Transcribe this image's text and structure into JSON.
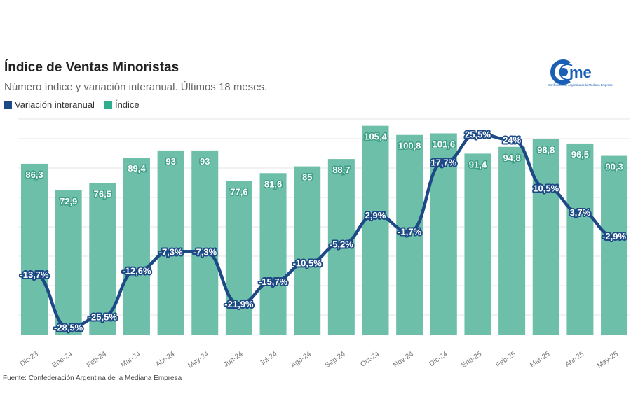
{
  "header": {
    "title": "Índice de Ventas Minoristas",
    "subtitle": "Número índice y variación interanual. Últimos 18 meses.",
    "logo_text": "cAme",
    "logo_caption": "Confederación Argentina de la Mediana Empresa"
  },
  "source": "Fuente: Confederación Argentina de la Mediana Empresa",
  "colors": {
    "bar": "#6dbfa9",
    "line": "#1d4a86",
    "grid": "#e6e6e6"
  },
  "chart_data": {
    "type": "bar+line",
    "categories": [
      "Dic-23",
      "Ene-24",
      "Feb-24",
      "Mar-24",
      "Abr-24",
      "May-24",
      "Jun-24",
      "Jul-24",
      "Ago-24",
      "Sep-24",
      "Oct-24",
      "Nov-24",
      "Dic-24",
      "Ene-25",
      "Feb-25",
      "Mar-25",
      "Abr-25",
      "May-25"
    ],
    "series": [
      {
        "name": "Índice",
        "type": "bar",
        "values": [
          86.3,
          72.9,
          76.5,
          89.4,
          93,
          93,
          77.6,
          81.6,
          85,
          88.7,
          105.4,
          100.8,
          101.6,
          91.4,
          94.8,
          98.8,
          96.5,
          90.3
        ],
        "labels": [
          "86,3",
          "72,9",
          "76,5",
          "89,4",
          "93",
          "93",
          "77,6",
          "81,6",
          "85",
          "88,7",
          "105,4",
          "100,8",
          "101,6",
          "91,4",
          "94,8",
          "98,8",
          "96,5",
          "90,3"
        ]
      },
      {
        "name": "Variación interanual",
        "type": "line",
        "values": [
          -13.7,
          -28.5,
          -25.5,
          -12.6,
          -7.3,
          -7.3,
          -21.9,
          -15.7,
          -10.5,
          -5.2,
          2.9,
          -1.7,
          17.7,
          25.5,
          24,
          10.5,
          3.7,
          -2.9
        ],
        "labels": [
          "-13,7%",
          "-28,5%",
          "-25,5%",
          "-12,6%",
          "-7,3%",
          "-7,3%",
          "-21,9%",
          "-15,7%",
          "-10,5%",
          "-5,2%",
          "2,9%",
          "-1,7%",
          "17,7%",
          "25,5%",
          "24%",
          "10,5%",
          "3,7%",
          "-2,9%"
        ]
      }
    ],
    "grid": true,
    "legend": "top-left"
  }
}
